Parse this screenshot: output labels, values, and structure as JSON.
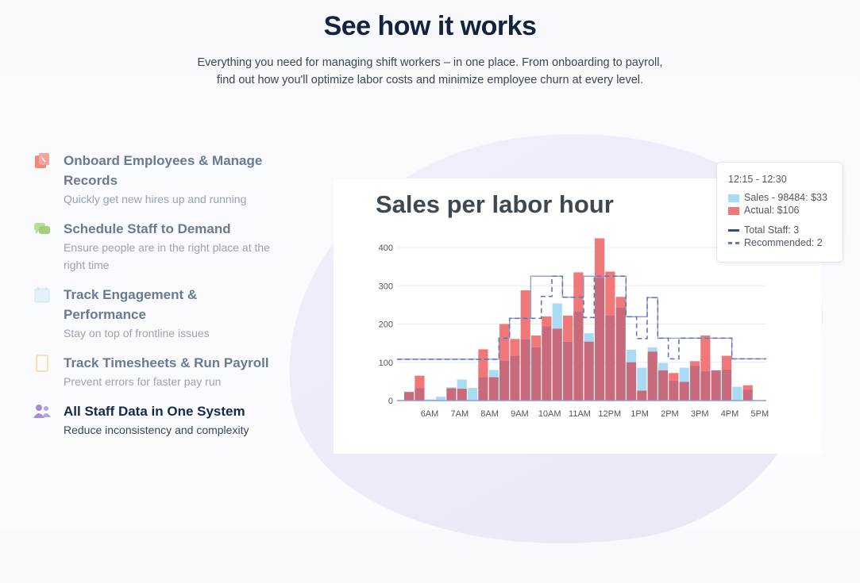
{
  "header": {
    "title": "See how it works",
    "subtitle_line1": "Everything you need for managing shift workers – in one place. From onboarding to payroll,",
    "subtitle_line2": "find out how you'll optimize labor costs and minimize employee churn at every level."
  },
  "features": [
    {
      "title": "Onboard Employees & Manage Records",
      "desc": "Quickly get new hires up and running",
      "icon": "clipboard-icon",
      "color": "#f08a7e"
    },
    {
      "title": "Schedule Staff to Demand",
      "desc": "Ensure people are in the right place at the right time",
      "icon": "chat-bubbles-icon",
      "color": "#b9dd94"
    },
    {
      "title": "Track Engagement & Performance",
      "desc": "Stay on top of frontline issues",
      "icon": "calendar-icon",
      "color": "#d6ecf6"
    },
    {
      "title": "Track Timesheets & Run Payroll",
      "desc": "Prevent errors for faster pay run",
      "icon": "tablet-icon",
      "color": "#f7e3a6"
    },
    {
      "title": "All Staff Data in One System",
      "desc": "Reduce inconsistency and complexity",
      "icon": "people-icon",
      "color": "#a98ccf",
      "active": true
    }
  ],
  "tooltip": {
    "time": "12:15 - 12:30",
    "sales": "Sales - 98484:  $33",
    "actual": "Actual:  $106",
    "total_staff": "Total Staff:  3",
    "recommended": "Recommended:  2"
  },
  "chart_data": {
    "type": "bar",
    "title": "Sales per labor hour",
    "ylim": [
      0,
      400
    ],
    "yticks": [
      "0",
      "100",
      "200",
      "300",
      "400"
    ],
    "xtick_labels": [
      "6AM",
      "7AM",
      "8AM",
      "9AM",
      "10AM",
      "11AM",
      "12PM",
      "1PM",
      "2PM",
      "3PM",
      "4PM",
      "5PM"
    ],
    "grid": true,
    "colors": {
      "sales": "#a9dcf4",
      "actual": "#f07878",
      "overlap": "#c96a7c",
      "staff": "#7f90d6"
    },
    "series": [
      {
        "key": "sales",
        "values": [
          22,
          33,
          3,
          10,
          35,
          55,
          33,
          61,
          80,
          105,
          117,
          161,
          139,
          194,
          254,
          154,
          233,
          176,
          321,
          223,
          244,
          133,
          86,
          139,
          98,
          52,
          86,
          91,
          77,
          79,
          81,
          36,
          28
        ]
      },
      {
        "key": "actual",
        "values": [
          23,
          65,
          0,
          0,
          32,
          31,
          0,
          134,
          61,
          200,
          161,
          288,
          170,
          220,
          188,
          222,
          335,
          154,
          424,
          337,
          271,
          100,
          26,
          128,
          79,
          72,
          49,
          103,
          170,
          79,
          117,
          0,
          40
        ]
      }
    ],
    "staff_lines": [
      {
        "key": "total",
        "style": "solid",
        "values": [
          108,
          108,
          108,
          108,
          108,
          108,
          108,
          108,
          108,
          163,
          215,
          215,
          325,
          325,
          325,
          270,
          270,
          325,
          325,
          325,
          325,
          219,
          219,
          269,
          163,
          163,
          163,
          163,
          163,
          163,
          163,
          109,
          109
        ]
      },
      {
        "key": "recommended",
        "style": "dashed",
        "values": [
          108,
          108,
          108,
          108,
          108,
          108,
          108,
          108,
          108,
          163,
          215,
          215,
          215,
          272,
          325,
          270,
          270,
          217,
          325,
          325,
          325,
          219,
          162,
          269,
          163,
          109,
          163,
          163,
          163,
          163,
          163,
          109,
          109
        ]
      }
    ]
  }
}
